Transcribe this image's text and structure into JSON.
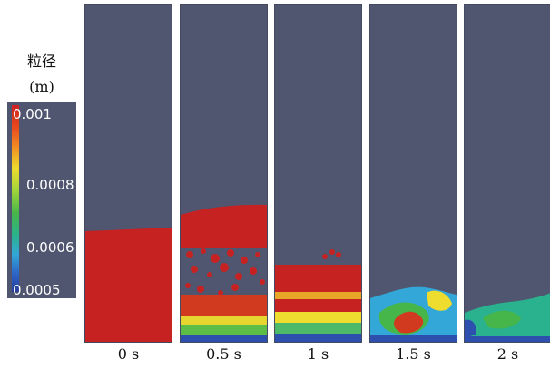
{
  "legend": {
    "title_line1": "粒径",
    "title_line2": "(m)",
    "ticks": [
      "0.001",
      "0.0008",
      "0.0006",
      "0.0005"
    ]
  },
  "panels": [
    {
      "label": "0 s"
    },
    {
      "label": "0.5 s"
    },
    {
      "label": "1 s"
    },
    {
      "label": "1.5 s"
    },
    {
      "label": "2 s"
    }
  ],
  "colors": {
    "background": "#505670",
    "colormap": [
      "#263d9b",
      "#2d66c7",
      "#33a7d8",
      "#2ab28f",
      "#46b54a",
      "#9fd33a",
      "#eedc2e",
      "#f08a22",
      "#e84a1e",
      "#d21f1f"
    ]
  }
}
